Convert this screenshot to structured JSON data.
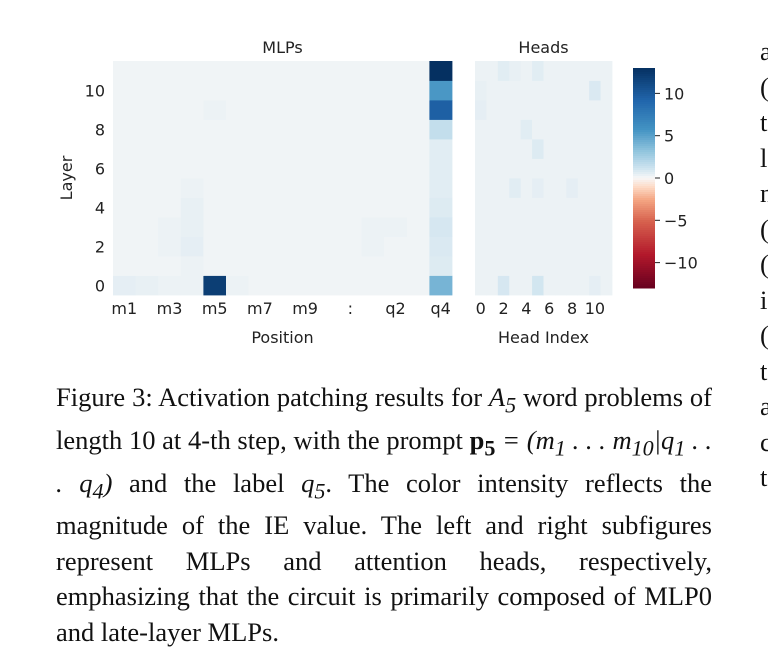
{
  "chart_data": [
    {
      "type": "heatmap",
      "title": "MLPs",
      "xlabel": "Position",
      "ylabel": "Layer",
      "x": [
        "m1",
        "m2",
        "m3",
        "m4",
        "m5",
        "m6",
        "m7",
        "m8",
        "m9",
        "m10",
        ":",
        "q1",
        "q2",
        "q3",
        "q4"
      ],
      "xtick_labels": [
        "m1",
        "m3",
        "m5",
        "m7",
        "m9",
        ":",
        "q2",
        "q4"
      ],
      "y": [
        0,
        1,
        2,
        3,
        4,
        5,
        6,
        7,
        8,
        9,
        10,
        11
      ],
      "ytick_labels": [
        "0",
        "2",
        "4",
        "6",
        "8",
        "10"
      ],
      "values": [
        [
          0.5,
          0.4,
          0.3,
          0.3,
          12,
          0.3,
          0.2,
          0.2,
          0.2,
          0.2,
          0.2,
          0.2,
          0.2,
          0.2,
          4.0
        ],
        [
          0.2,
          0.2,
          0.2,
          0.3,
          0.2,
          0.2,
          0.2,
          0.2,
          0.2,
          0.2,
          0.2,
          0.2,
          0.2,
          0.2,
          0.7
        ],
        [
          0.2,
          0.2,
          0.3,
          0.5,
          0.2,
          0.2,
          0.2,
          0.2,
          0.2,
          0.2,
          0.2,
          0.3,
          0.2,
          0.2,
          0.8
        ],
        [
          0.2,
          0.2,
          0.3,
          0.4,
          0.2,
          0.2,
          0.2,
          0.2,
          0.2,
          0.2,
          0.2,
          0.3,
          0.3,
          0.2,
          0.9
        ],
        [
          0.2,
          0.2,
          0.2,
          0.4,
          0.2,
          0.2,
          0.2,
          0.2,
          0.2,
          0.2,
          0.2,
          0.2,
          0.2,
          0.2,
          0.7
        ],
        [
          0.2,
          0.2,
          0.2,
          0.3,
          0.2,
          0.2,
          0.2,
          0.2,
          0.2,
          0.2,
          0.2,
          0.2,
          0.2,
          0.2,
          0.6
        ],
        [
          0.2,
          0.2,
          0.2,
          0.2,
          0.2,
          0.2,
          0.2,
          0.2,
          0.2,
          0.2,
          0.2,
          0.2,
          0.2,
          0.2,
          0.6
        ],
        [
          0.2,
          0.2,
          0.2,
          0.2,
          0.2,
          0.2,
          0.2,
          0.2,
          0.2,
          0.2,
          0.2,
          0.2,
          0.2,
          0.2,
          0.6
        ],
        [
          0.2,
          0.2,
          0.2,
          0.2,
          0.2,
          0.2,
          0.2,
          0.2,
          0.2,
          0.2,
          0.2,
          0.2,
          0.2,
          0.2,
          1.5
        ],
        [
          0.2,
          0.2,
          0.2,
          0.2,
          0.3,
          0.2,
          0.2,
          0.2,
          0.2,
          0.2,
          0.2,
          0.2,
          0.2,
          0.2,
          9.5
        ],
        [
          0.2,
          0.2,
          0.2,
          0.2,
          0.2,
          0.2,
          0.2,
          0.2,
          0.2,
          0.2,
          0.2,
          0.2,
          0.2,
          0.2,
          5.5
        ],
        [
          0.2,
          0.2,
          0.2,
          0.2,
          0.2,
          0.2,
          0.2,
          0.2,
          0.2,
          0.2,
          0.2,
          0.2,
          0.2,
          0.2,
          13
        ]
      ]
    },
    {
      "type": "heatmap",
      "title": "Heads",
      "xlabel": "Head Index",
      "ylabel": "",
      "x": [
        0,
        1,
        2,
        3,
        4,
        5,
        6,
        7,
        8,
        9,
        10,
        11
      ],
      "xtick_labels": [
        "0",
        "2",
        "4",
        "6",
        "8",
        "10"
      ],
      "y": [
        0,
        1,
        2,
        3,
        4,
        5,
        6,
        7,
        8,
        9,
        10,
        11
      ],
      "values": [
        [
          0.3,
          0.3,
          0.9,
          0.3,
          0.3,
          1.0,
          0.3,
          0.3,
          0.3,
          0.3,
          0.5,
          0.3
        ],
        [
          0.3,
          0.3,
          0.3,
          0.3,
          0.3,
          0.3,
          0.3,
          0.3,
          0.3,
          0.3,
          0.3,
          0.3
        ],
        [
          0.3,
          0.3,
          0.3,
          0.3,
          0.3,
          0.3,
          0.3,
          0.3,
          0.3,
          0.3,
          0.3,
          0.3
        ],
        [
          0.3,
          0.3,
          0.3,
          0.3,
          0.3,
          0.3,
          0.3,
          0.3,
          0.3,
          0.3,
          0.3,
          0.3
        ],
        [
          0.3,
          0.3,
          0.3,
          0.3,
          0.3,
          0.3,
          0.3,
          0.3,
          0.3,
          0.3,
          0.3,
          0.3
        ],
        [
          0.3,
          0.3,
          0.3,
          0.6,
          0.3,
          0.5,
          0.3,
          0.3,
          0.5,
          0.3,
          0.3,
          0.3
        ],
        [
          0.3,
          0.3,
          0.3,
          0.3,
          0.3,
          0.3,
          0.3,
          0.3,
          0.3,
          0.3,
          0.3,
          0.3
        ],
        [
          0.3,
          0.3,
          0.3,
          0.3,
          0.3,
          0.7,
          0.3,
          0.3,
          0.3,
          0.3,
          0.3,
          0.3
        ],
        [
          0.3,
          0.3,
          0.3,
          0.3,
          0.6,
          0.3,
          0.3,
          0.3,
          0.3,
          0.3,
          0.3,
          0.3
        ],
        [
          0.5,
          0.3,
          0.3,
          0.3,
          0.3,
          0.3,
          0.3,
          0.3,
          0.3,
          0.3,
          0.3,
          0.3
        ],
        [
          0.4,
          0.3,
          0.3,
          0.3,
          0.3,
          0.3,
          0.3,
          0.3,
          0.3,
          0.3,
          0.8,
          0.3
        ],
        [
          0.3,
          0.3,
          0.6,
          0.4,
          0.3,
          0.6,
          0.3,
          0.3,
          0.3,
          0.3,
          0.3,
          0.3
        ]
      ]
    }
  ],
  "colorbar": {
    "range": [
      -13,
      13
    ],
    "ticks": [
      10,
      5,
      0,
      -5,
      -10
    ],
    "tick_labels": [
      "10",
      "5",
      "0",
      "−5",
      "−10"
    ],
    "colormap": "RdBu",
    "colors": {
      "low": "#67001f",
      "mid": "#f7f7f7",
      "high": "#053061"
    }
  },
  "caption": {
    "lead": "Figure 3:",
    "text_1": "Activation patching results for",
    "var_A": "A",
    "var_A_sub": "5",
    "text_2": "word problems of length 10 at",
    "step_num": "4",
    "text_3": "-th step, with the prompt",
    "prompt_bold": "p",
    "prompt_sub": "5",
    "prompt_eq": "= (m",
    "m1_sub": "1",
    "dots1": " . . . m",
    "m10_sub": "10",
    "bar": "|q",
    "q1_sub": "1",
    "dots2": " . . . q",
    "q4_sub": "4",
    "close": ")",
    "text_4": "and the label",
    "q_label": "q",
    "q5_sub": "5",
    "text_5": ". The color intensity reflects the magnitude of the IE value. The left and right subfigures represent MLPs and attention heads, respectively, emphasizing that the circuit is primarily composed of MLP0 and late-layer MLPs."
  },
  "right_column_fragments": [
    "a",
    "(",
    "t",
    "l",
    "n",
    "(",
    "(",
    "i",
    "(",
    "t",
    "a",
    "c",
    "t"
  ]
}
